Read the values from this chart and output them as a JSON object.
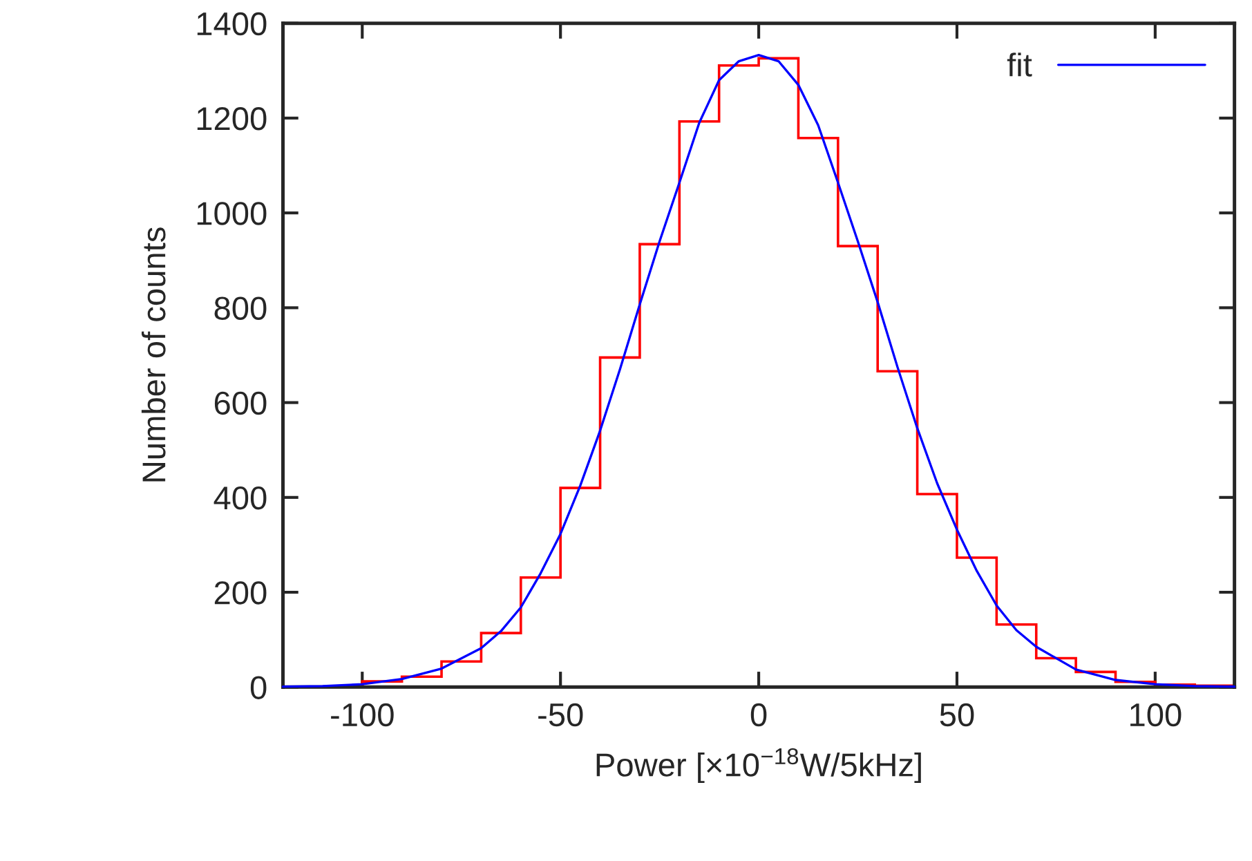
{
  "chart_data": {
    "type": "histogram",
    "xlabel": "Power [×10$^{−18}$W/5kHz]",
    "ylabel": "Number of counts",
    "bins": [
      -100,
      -90,
      -80,
      -70,
      -60,
      -50,
      -40,
      -30,
      -20,
      -10,
      0,
      10,
      20,
      30,
      40,
      50,
      60,
      70,
      80,
      90,
      100,
      110,
      120
    ],
    "values": [
      12,
      22,
      54,
      114,
      231,
      420,
      695,
      934,
      1193,
      1311,
      1326,
      1158,
      930,
      666,
      407,
      273,
      132,
      61,
      32,
      11,
      5,
      3
    ],
    "color": "#ff0000",
    "series": [
      {
        "type": "line",
        "name": "fit",
        "color": "#0000ff",
        "x": [
          -120,
          -110,
          -100,
          -90,
          -80,
          -70,
          -65,
          -60,
          -55,
          -50,
          -45,
          -40,
          -35,
          -30,
          -25,
          -20,
          -15,
          -10,
          -5,
          0,
          5,
          10,
          15,
          20,
          25,
          30,
          35,
          40,
          45,
          50,
          55,
          60,
          65,
          70,
          80,
          90,
          100,
          110,
          120
        ],
        "values": [
          1,
          2,
          6,
          17,
          39,
          82,
          118,
          168,
          240,
          323,
          425,
          541,
          670,
          807,
          940,
          1064,
          1190,
          1280,
          1320,
          1333,
          1320,
          1270,
          1185,
          1064,
          940,
          812,
          675,
          546,
          430,
          332,
          245,
          172,
          120,
          85,
          37,
          15,
          6,
          2,
          1
        ]
      }
    ],
    "xlim": [
      -120,
      120
    ],
    "ylim": [
      0,
      1400
    ],
    "xticks": [
      -100,
      -50,
      0,
      50,
      100
    ],
    "yticks": [
      0,
      200,
      400,
      600,
      800,
      1000,
      1200,
      1400
    ],
    "grid": false,
    "legend": "top right"
  }
}
